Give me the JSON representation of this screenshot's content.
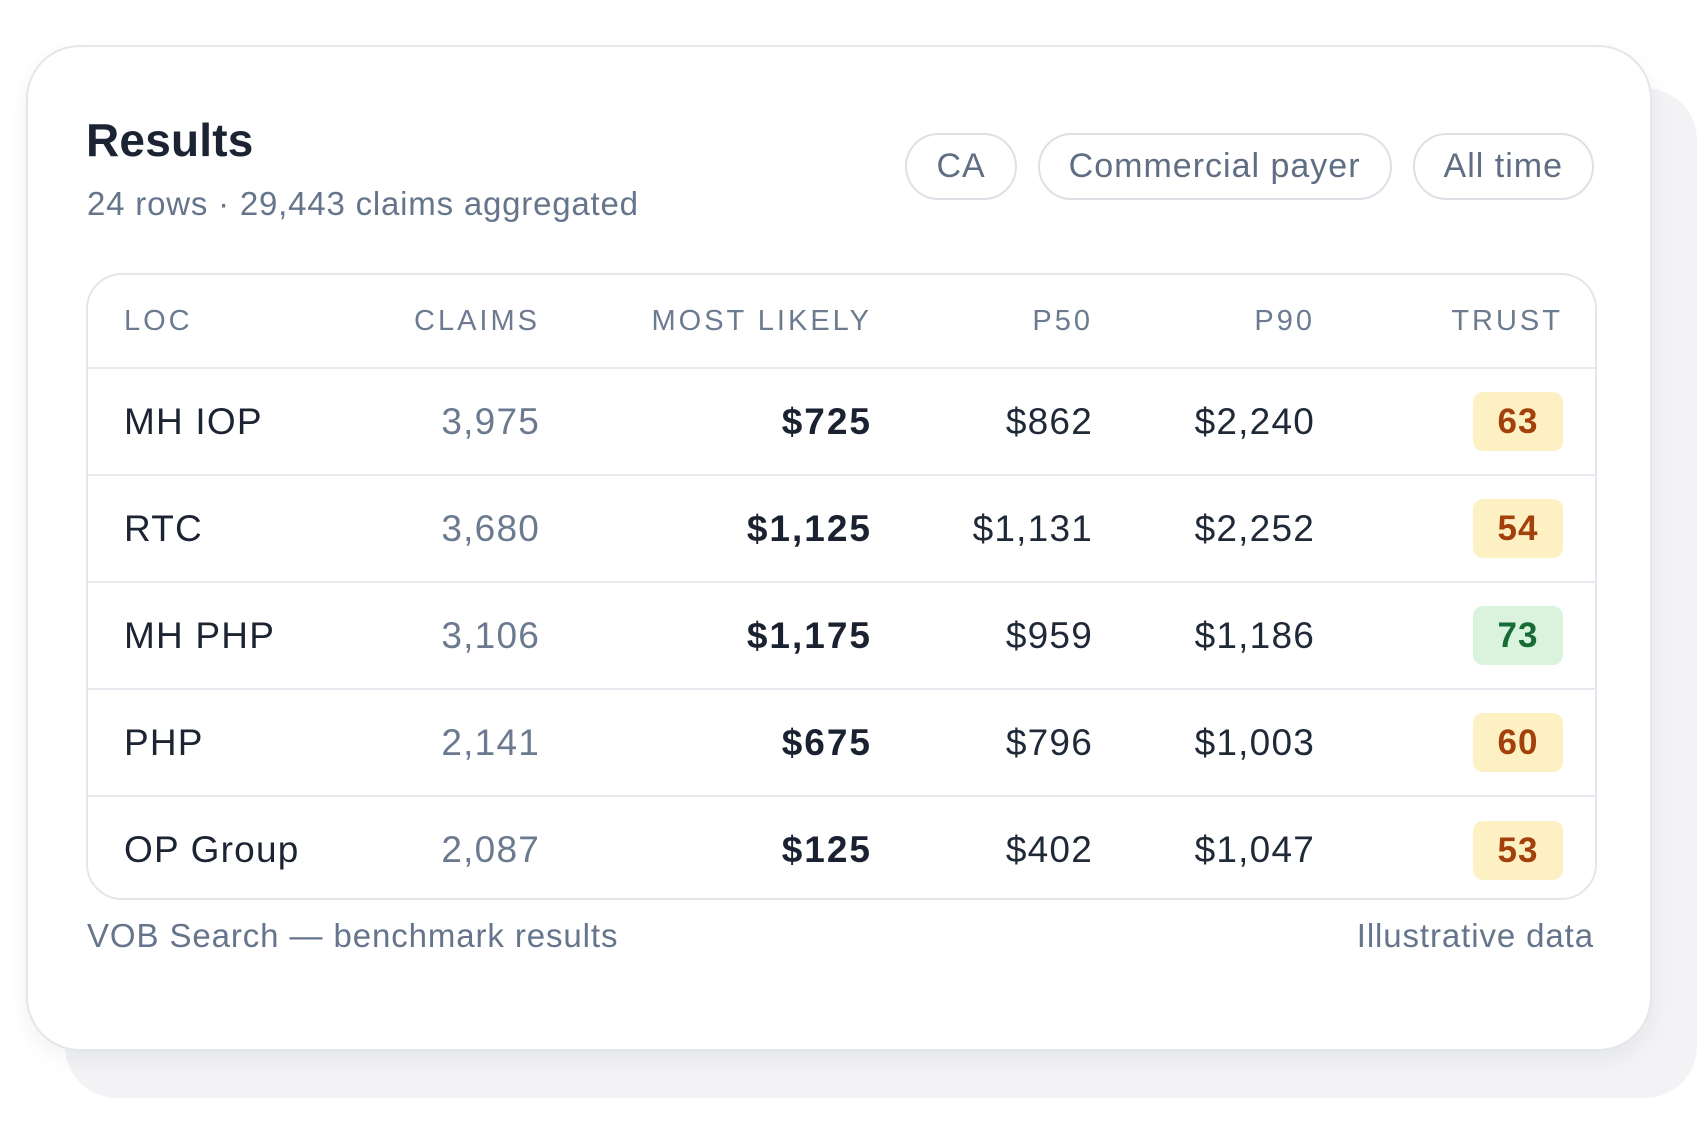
{
  "header": {
    "title": "Results",
    "subtitle": "24 rows · 29,443 claims aggregated"
  },
  "filters": [
    {
      "label": "CA"
    },
    {
      "label": "Commercial payer"
    },
    {
      "label": "All time"
    }
  ],
  "table": {
    "columns": [
      "LOC",
      "CLAIMS",
      "MOST LIKELY",
      "P50",
      "P90",
      "TRUST"
    ],
    "rows": [
      {
        "loc": "MH IOP",
        "claims": "3,975",
        "most_likely": "$725",
        "p50": "$862",
        "p90": "$2,240",
        "trust": "63",
        "trust_level": "amber"
      },
      {
        "loc": "RTC",
        "claims": "3,680",
        "most_likely": "$1,125",
        "p50": "$1,131",
        "p90": "$2,252",
        "trust": "54",
        "trust_level": "amber"
      },
      {
        "loc": "MH PHP",
        "claims": "3,106",
        "most_likely": "$1,175",
        "p50": "$959",
        "p90": "$1,186",
        "trust": "73",
        "trust_level": "green"
      },
      {
        "loc": "PHP",
        "claims": "2,141",
        "most_likely": "$675",
        "p50": "$796",
        "p90": "$1,003",
        "trust": "60",
        "trust_level": "amber"
      },
      {
        "loc": "OP Group",
        "claims": "2,087",
        "most_likely": "$125",
        "p50": "$402",
        "p90": "$1,047",
        "trust": "53",
        "trust_level": "amber"
      }
    ]
  },
  "footer": {
    "left": "VOB Search — benchmark results",
    "right": "Illustrative data"
  },
  "colors": {
    "trust_amber_bg": "#fdf1c4",
    "trust_amber_text": "#a4400b",
    "trust_green_bg": "#d9f3dd",
    "trust_green_text": "#176b35"
  }
}
